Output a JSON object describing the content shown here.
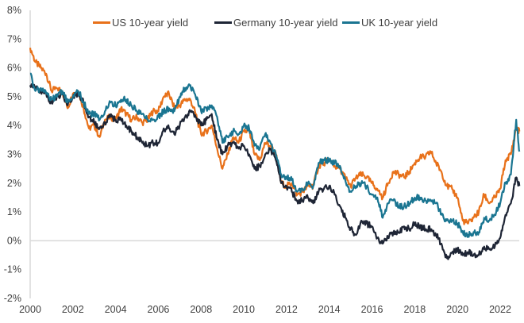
{
  "chart_data": {
    "type": "line",
    "title": "",
    "xlabel": "",
    "ylabel": "",
    "xlim": [
      2000,
      2022.9
    ],
    "ylim": [
      -2,
      8
    ],
    "y_ticks": [
      "8%",
      "7%",
      "6%",
      "5%",
      "4%",
      "3%",
      "2%",
      "1%",
      "0%",
      "-1%",
      "-2%"
    ],
    "y_tick_values": [
      8,
      7,
      6,
      5,
      4,
      3,
      2,
      1,
      0,
      -1,
      -2
    ],
    "x_ticks": [
      "2000",
      "2002",
      "2004",
      "2006",
      "2008",
      "2010",
      "2012",
      "2014",
      "2016",
      "2018",
      "2020",
      "2022"
    ],
    "x_tick_values": [
      2000,
      2002,
      2004,
      2006,
      2008,
      2010,
      2012,
      2014,
      2016,
      2018,
      2020,
      2022
    ],
    "grid": false,
    "zero_line": true,
    "legend_position": "top",
    "x": [
      2000.0,
      2000.25,
      2000.5,
      2000.75,
      2001.0,
      2001.25,
      2001.5,
      2001.75,
      2002.0,
      2002.25,
      2002.5,
      2002.75,
      2003.0,
      2003.25,
      2003.5,
      2003.75,
      2004.0,
      2004.25,
      2004.5,
      2004.75,
      2005.0,
      2005.25,
      2005.5,
      2005.75,
      2006.0,
      2006.25,
      2006.5,
      2006.75,
      2007.0,
      2007.25,
      2007.5,
      2007.75,
      2008.0,
      2008.25,
      2008.5,
      2008.75,
      2009.0,
      2009.25,
      2009.5,
      2009.75,
      2010.0,
      2010.25,
      2010.5,
      2010.75,
      2011.0,
      2011.25,
      2011.5,
      2011.75,
      2012.0,
      2012.25,
      2012.5,
      2012.75,
      2013.0,
      2013.25,
      2013.5,
      2013.75,
      2014.0,
      2014.25,
      2014.5,
      2014.75,
      2015.0,
      2015.25,
      2015.5,
      2015.75,
      2016.0,
      2016.25,
      2016.5,
      2016.75,
      2017.0,
      2017.25,
      2017.5,
      2017.75,
      2018.0,
      2018.25,
      2018.5,
      2018.75,
      2019.0,
      2019.25,
      2019.5,
      2019.75,
      2020.0,
      2020.25,
      2020.5,
      2020.75,
      2021.0,
      2021.25,
      2021.5,
      2021.75,
      2022.0,
      2022.25,
      2022.5,
      2022.75,
      2022.9
    ],
    "series": [
      {
        "name": "US 10-year yield",
        "color": "#E8711A",
        "values": [
          6.7,
          6.2,
          6.0,
          5.8,
          5.2,
          5.3,
          5.2,
          4.6,
          5.1,
          5.2,
          4.6,
          3.9,
          4.0,
          3.6,
          4.2,
          4.3,
          4.2,
          4.6,
          4.4,
          4.2,
          4.3,
          4.1,
          4.2,
          4.5,
          4.5,
          5.0,
          5.1,
          4.6,
          4.7,
          4.9,
          4.9,
          4.4,
          3.7,
          3.8,
          4.0,
          3.2,
          2.5,
          3.0,
          3.6,
          3.4,
          3.8,
          3.8,
          3.0,
          2.8,
          3.4,
          3.3,
          3.0,
          2.0,
          1.9,
          2.0,
          1.6,
          1.7,
          1.9,
          1.9,
          2.6,
          2.7,
          2.8,
          2.6,
          2.5,
          2.2,
          1.9,
          2.2,
          2.3,
          2.2,
          2.0,
          1.8,
          1.5,
          2.0,
          2.4,
          2.3,
          2.2,
          2.4,
          2.7,
          2.9,
          2.9,
          3.1,
          2.7,
          2.4,
          1.9,
          1.8,
          1.5,
          0.7,
          0.6,
          0.8,
          1.0,
          1.6,
          1.3,
          1.5,
          1.8,
          2.8,
          3.0,
          3.9,
          3.8
        ]
      },
      {
        "name": "Germany 10-year yield",
        "color": "#1E2535",
        "values": [
          5.4,
          5.3,
          5.2,
          5.1,
          4.8,
          5.0,
          5.1,
          4.7,
          5.0,
          5.1,
          4.8,
          4.3,
          4.1,
          3.9,
          4.1,
          4.3,
          4.2,
          4.2,
          4.0,
          3.8,
          3.6,
          3.4,
          3.3,
          3.4,
          3.4,
          3.9,
          3.9,
          3.7,
          4.0,
          4.3,
          4.5,
          4.3,
          4.0,
          4.2,
          4.4,
          3.5,
          3.0,
          3.3,
          3.4,
          3.2,
          3.3,
          3.0,
          2.5,
          2.6,
          3.0,
          3.2,
          2.8,
          2.0,
          1.9,
          1.7,
          1.4,
          1.4,
          1.5,
          1.3,
          1.7,
          1.8,
          1.9,
          1.6,
          1.2,
          0.8,
          0.4,
          0.2,
          0.7,
          0.6,
          0.5,
          0.1,
          -0.1,
          0.1,
          0.3,
          0.3,
          0.5,
          0.4,
          0.6,
          0.5,
          0.4,
          0.4,
          0.2,
          -0.1,
          -0.6,
          -0.4,
          -0.3,
          -0.5,
          -0.4,
          -0.5,
          -0.5,
          -0.2,
          -0.3,
          -0.2,
          0.1,
          0.9,
          1.3,
          2.2,
          1.9
        ]
      },
      {
        "name": "UK 10-year yield",
        "color": "#1A7591",
        "values": [
          5.8,
          5.2,
          5.3,
          5.1,
          4.9,
          5.0,
          5.2,
          4.8,
          5.0,
          5.2,
          4.8,
          4.4,
          4.4,
          4.2,
          4.5,
          4.8,
          4.7,
          4.9,
          4.9,
          4.7,
          4.5,
          4.4,
          4.2,
          4.2,
          4.3,
          4.5,
          4.6,
          4.5,
          5.0,
          5.3,
          5.4,
          5.0,
          4.5,
          4.6,
          4.7,
          4.3,
          3.4,
          3.6,
          3.8,
          3.7,
          4.0,
          3.9,
          3.3,
          3.2,
          3.7,
          3.4,
          3.0,
          2.3,
          2.2,
          2.1,
          1.7,
          1.8,
          2.0,
          1.9,
          2.7,
          2.8,
          2.8,
          2.7,
          2.6,
          2.1,
          1.7,
          1.9,
          2.0,
          1.9,
          1.6,
          1.5,
          0.8,
          1.3,
          1.4,
          1.2,
          1.2,
          1.3,
          1.5,
          1.5,
          1.4,
          1.4,
          1.3,
          0.9,
          0.7,
          0.7,
          0.6,
          0.3,
          0.2,
          0.3,
          0.3,
          0.8,
          0.7,
          0.9,
          1.3,
          2.0,
          2.3,
          4.2,
          3.1
        ]
      }
    ]
  }
}
